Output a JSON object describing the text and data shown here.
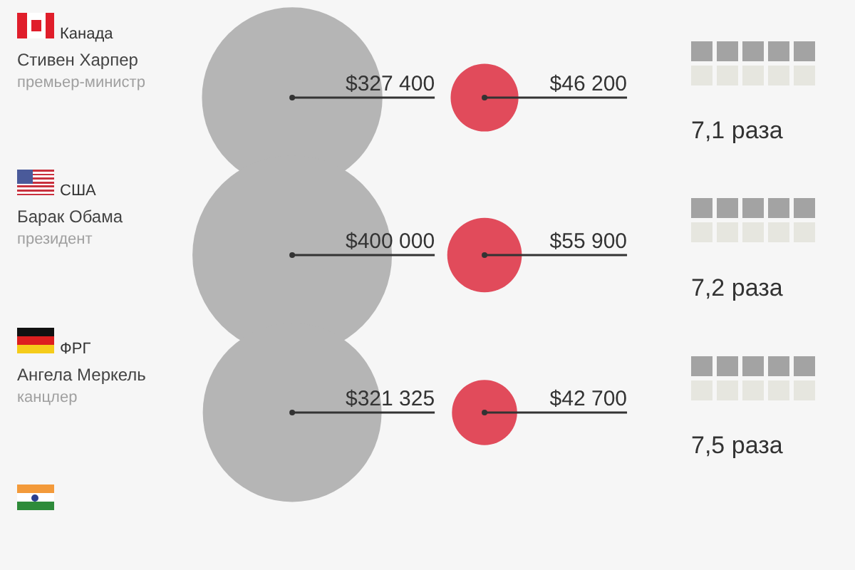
{
  "chart_data": {
    "type": "other",
    "categories": [
      "Канада",
      "США",
      "ФРГ",
      null
    ],
    "series": [
      {
        "color": "#b5b5b5",
        "values": [
          327400,
          400000,
          321325,
          null
        ],
        "value_labels": [
          "$327 400",
          "$400 000",
          "$321 325",
          null
        ]
      },
      {
        "color": "#e14b5b",
        "values": [
          46200,
          55900,
          42700,
          null
        ],
        "value_labels": [
          "$46 200",
          "$55 900",
          "$42 700",
          null
        ]
      },
      {
        "values": [
          7.1,
          7.2,
          7.5,
          null
        ],
        "value_labels": [
          "7,1 раза",
          "7,2 раза",
          "7,5 раза",
          null
        ]
      }
    ],
    "annotations": [
      "Стивен Харпер",
      "премьер-министр",
      "Барак Обама",
      "президент",
      "Ангела Меркель",
      "канцлер"
    ]
  }
}
